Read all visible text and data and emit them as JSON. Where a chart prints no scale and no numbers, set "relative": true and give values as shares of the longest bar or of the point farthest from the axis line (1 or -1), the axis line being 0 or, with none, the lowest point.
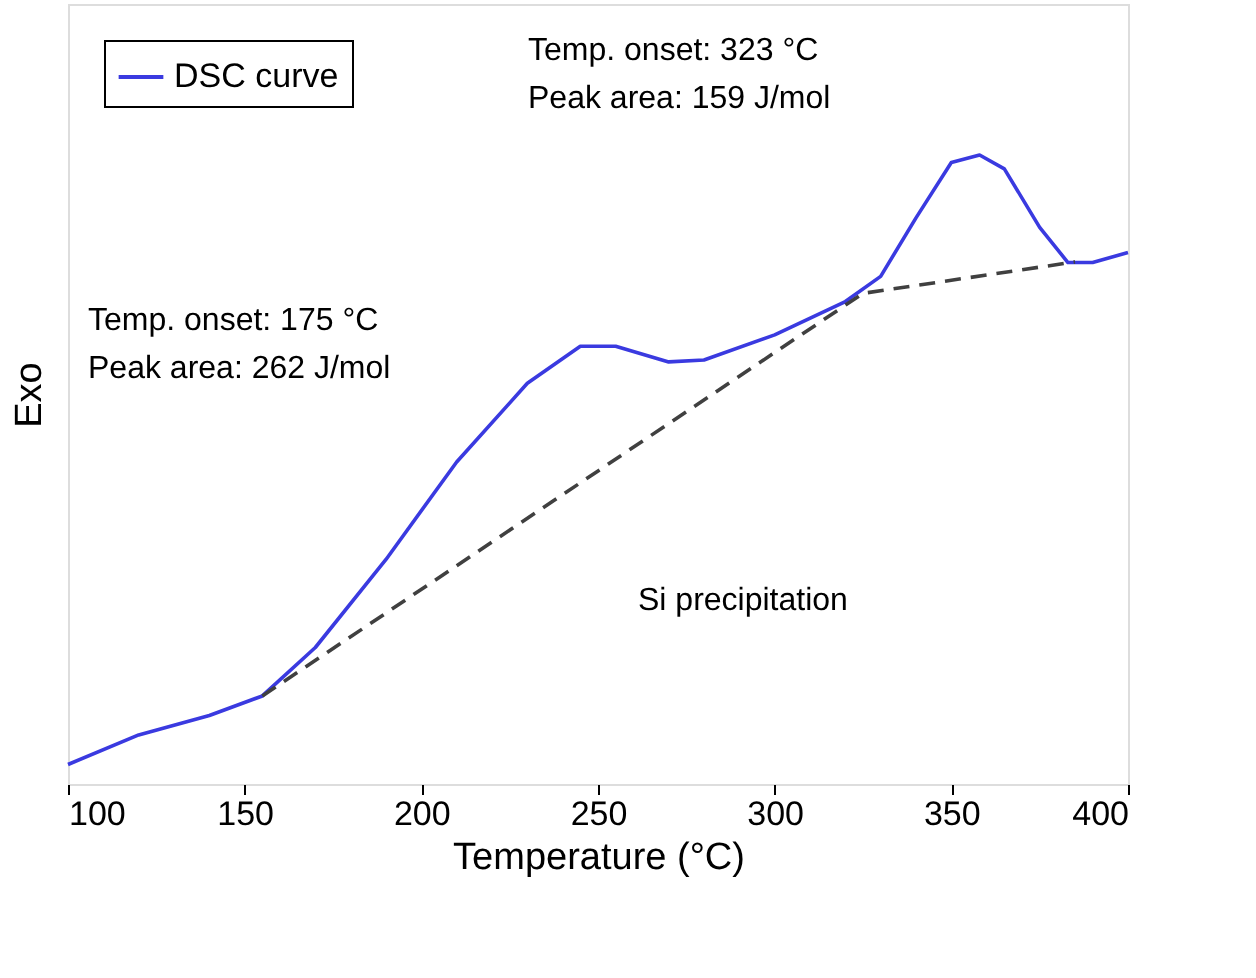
{
  "chart_data": {
    "type": "line",
    "relative": true,
    "xlabel": "Temperature (°C)",
    "ylabel": "Exo",
    "xlim": [
      100,
      400
    ],
    "xticks": [
      100,
      150,
      200,
      250,
      300,
      350,
      400
    ],
    "tick_labels": "x",
    "grid": false,
    "legend": "top left",
    "marker": "none",
    "series": [
      {
        "name": "DSC curve",
        "color": "#3a3ae0",
        "line_style": "solid",
        "x": [
          100,
          120,
          140,
          155,
          170,
          190,
          210,
          230,
          245,
          255,
          270,
          280,
          300,
          320,
          330,
          340,
          350,
          358,
          365,
          375,
          383,
          390,
          400
        ],
        "values": [
          0.031,
          0.078,
          0.109,
          0.14,
          0.217,
          0.357,
          0.512,
          0.637,
          0.696,
          0.696,
          0.671,
          0.674,
          0.714,
          0.767,
          0.807,
          0.9,
          0.988,
          1.0,
          0.978,
          0.885,
          0.829,
          0.829,
          0.845
        ]
      },
      {
        "type": "line",
        "color": "#404040",
        "line_style": "dashed",
        "x": [
          155,
          325,
          385
        ],
        "values": [
          0.14,
          0.78,
          0.83
        ]
      }
    ],
    "annotations": [
      "Temp. onset: 323 °C\nPeak area: 159 J/mol",
      "Temp. onset: 175 °C\nPeak area: 262 J/mol",
      "Si precipitation"
    ]
  }
}
